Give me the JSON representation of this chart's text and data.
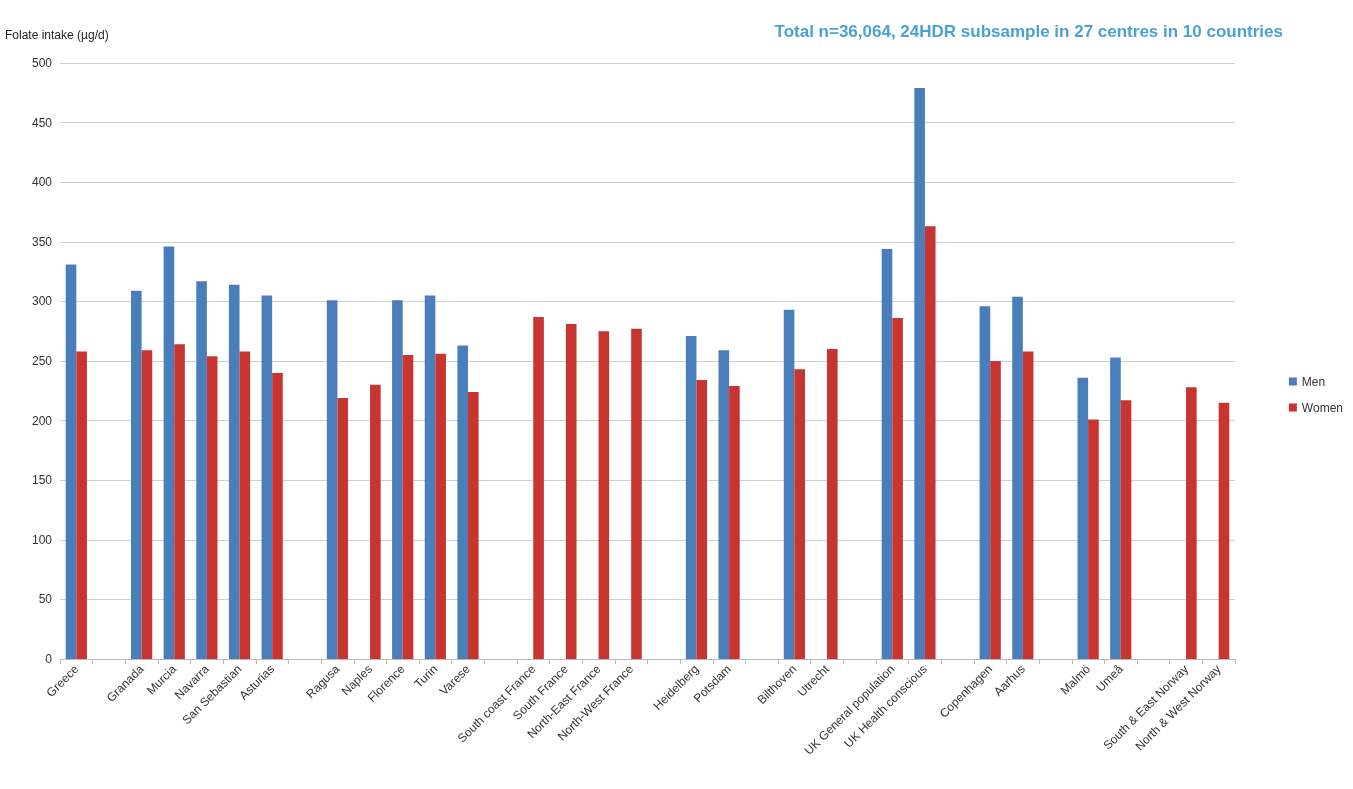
{
  "chart_data": {
    "type": "bar",
    "title": "Total n=36,064, 24HDR subsample in 27 centres in 10 countries",
    "ylabel": "Folate intake (µg/d)",
    "categories": [
      "Greece",
      null,
      "Granada",
      "Murcia",
      "Navarra",
      "San Sebastian",
      "Asturias",
      null,
      "Ragusa",
      "Naples",
      "Florence",
      "Turin",
      "Varese",
      null,
      "South coast France",
      "South France",
      "North-East France",
      "North-West France",
      null,
      "Heidelberg",
      "Potsdam",
      null,
      "Bilthoven",
      "Utrecht",
      null,
      "UK General population",
      "UK Health conscious",
      null,
      "Copenhagen",
      "Aarhus",
      null,
      "Malmö",
      "Umeå",
      null,
      "South & East Norway",
      "North & West Norway"
    ],
    "series": [
      {
        "name": "Men",
        "color": "#4a7ebb",
        "values": [
          331,
          null,
          309,
          346,
          317,
          314,
          305,
          null,
          301,
          null,
          301,
          305,
          263,
          null,
          null,
          null,
          null,
          null,
          null,
          271,
          259,
          null,
          293,
          null,
          null,
          344,
          479,
          null,
          296,
          304,
          null,
          236,
          253,
          null,
          null,
          null
        ]
      },
      {
        "name": "Women",
        "color": "#c83430",
        "values": [
          258,
          null,
          259,
          264,
          254,
          258,
          240,
          null,
          219,
          230,
          255,
          256,
          224,
          null,
          287,
          281,
          275,
          277,
          null,
          234,
          229,
          null,
          243,
          260,
          null,
          286,
          363,
          null,
          250,
          258,
          null,
          201,
          217,
          null,
          228,
          215
        ]
      }
    ],
    "ylim": [
      0,
      500
    ],
    "yticks": [
      0,
      50,
      100,
      150,
      200,
      250,
      300,
      350,
      400,
      450,
      500
    ],
    "grid": "y",
    "legend": "right"
  }
}
